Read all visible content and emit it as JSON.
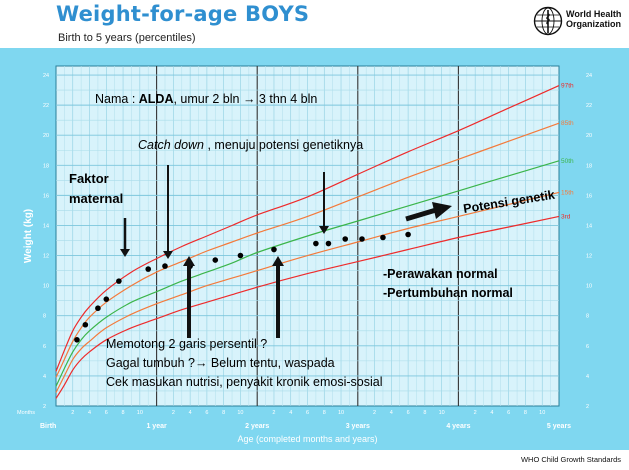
{
  "header": {
    "title": "Weight-for-age BOYS",
    "subtitle": "Birth to 5 years (percentiles)",
    "org_name_line1": "World Health",
    "org_name_line2": "Organization"
  },
  "footer": {
    "text": "WHO Child Growth Standards"
  },
  "colors": {
    "band": "#7fd7f0",
    "plot_bg": "#d8f3fb",
    "red_curve": "#ee2b2b",
    "orange_curve": "#f47a3b",
    "green_curve": "#3bb54a",
    "arrow": "#111111"
  },
  "chart_data": {
    "type": "line",
    "title": "Weight-for-age BOYS",
    "subtitle": "Birth to 5 years (percentiles)",
    "xlabel": "Age (completed months and years)",
    "ylabel": "Weight (kg)",
    "xlim": [
      0,
      60
    ],
    "ylim": [
      2,
      24.6
    ],
    "grid": true,
    "y_ticks": [
      2,
      4,
      6,
      8,
      10,
      12,
      14,
      16,
      18,
      20,
      22,
      24
    ],
    "x_month_ticks": [
      {
        "m": 2,
        "label": "2"
      },
      {
        "m": 4,
        "label": "4"
      },
      {
        "m": 6,
        "label": "6"
      },
      {
        "m": 8,
        "label": "8"
      },
      {
        "m": 10,
        "label": "10"
      },
      {
        "m": 14,
        "label": "2"
      },
      {
        "m": 16,
        "label": "4"
      },
      {
        "m": 18,
        "label": "6"
      },
      {
        "m": 20,
        "label": "8"
      },
      {
        "m": 22,
        "label": "10"
      },
      {
        "m": 26,
        "label": "2"
      },
      {
        "m": 28,
        "label": "4"
      },
      {
        "m": 30,
        "label": "6"
      },
      {
        "m": 32,
        "label": "8"
      },
      {
        "m": 34,
        "label": "10"
      },
      {
        "m": 38,
        "label": "2"
      },
      {
        "m": 40,
        "label": "4"
      },
      {
        "m": 42,
        "label": "6"
      },
      {
        "m": 44,
        "label": "8"
      },
      {
        "m": 46,
        "label": "10"
      },
      {
        "m": 50,
        "label": "2"
      },
      {
        "m": 52,
        "label": "4"
      },
      {
        "m": 54,
        "label": "6"
      },
      {
        "m": 56,
        "label": "8"
      },
      {
        "m": 58,
        "label": "10"
      }
    ],
    "x_year_ticks": [
      {
        "m": 0,
        "label": "Birth"
      },
      {
        "m": 12,
        "label": "1 year"
      },
      {
        "m": 24,
        "label": "2 years"
      },
      {
        "m": 36,
        "label": "3 years"
      },
      {
        "m": 48,
        "label": "4 years"
      },
      {
        "m": 60,
        "label": "5 years"
      }
    ],
    "months_label": "Months",
    "x": [
      0,
      1,
      2,
      3,
      4,
      6,
      9,
      12,
      15,
      18,
      21,
      24,
      30,
      36,
      42,
      48,
      54,
      60
    ],
    "series": [
      {
        "name": "97th",
        "color": "red",
        "values": [
          4.3,
          5.7,
          7.0,
          7.9,
          8.6,
          9.7,
          10.9,
          11.8,
          12.6,
          13.3,
          14.0,
          14.7,
          15.9,
          17.4,
          18.9,
          20.3,
          21.8,
          23.3
        ]
      },
      {
        "name": "85th",
        "color": "orange",
        "values": [
          3.9,
          5.1,
          6.3,
          7.2,
          7.9,
          8.9,
          10.0,
          10.9,
          11.6,
          12.3,
          12.9,
          13.5,
          14.6,
          15.9,
          17.2,
          18.4,
          19.6,
          20.8
        ]
      },
      {
        "name": "50th",
        "color": "green",
        "values": [
          3.3,
          4.5,
          5.6,
          6.4,
          7.0,
          7.9,
          8.9,
          9.6,
          10.3,
          10.9,
          11.5,
          12.2,
          13.3,
          14.3,
          15.3,
          16.3,
          17.3,
          18.3
        ]
      },
      {
        "name": "15th",
        "color": "orange",
        "values": [
          2.9,
          4.0,
          5.1,
          5.8,
          6.3,
          7.2,
          8.1,
          8.8,
          9.4,
          10.0,
          10.5,
          11.0,
          12.0,
          12.9,
          13.8,
          14.6,
          15.4,
          16.2
        ]
      },
      {
        "name": "3rd",
        "color": "red",
        "values": [
          2.5,
          3.4,
          4.4,
          5.1,
          5.6,
          6.4,
          7.2,
          7.8,
          8.4,
          8.9,
          9.4,
          9.9,
          10.8,
          11.6,
          12.4,
          13.2,
          13.9,
          14.6
        ]
      }
    ],
    "points": {
      "name": "ALDA",
      "x": [
        2.5,
        3.5,
        5.0,
        6.0,
        7.5,
        11.0,
        13.0,
        16.0,
        19.0,
        22.0,
        26.0,
        31.0,
        32.5,
        34.5,
        36.5,
        39.0,
        42.0
      ],
      "y": [
        6.4,
        7.4,
        8.5,
        9.1,
        10.3,
        11.1,
        11.3,
        11.3,
        11.7,
        12.0,
        12.4,
        12.8,
        12.8,
        13.1,
        13.1,
        13.2,
        13.4
      ]
    },
    "annotations": {
      "nama_prefix": "Nama : ",
      "nama_name": "ALDA",
      "nama_suffix": ", umur 2 bln → 3 thn 4 bln",
      "catch_down_italic": "Catch down",
      "catch_down_rest": " , menuju potensi genetiknya",
      "faktor_line1": "Faktor",
      "faktor_line2": "maternal",
      "potensi": "Potensi genetik",
      "perawakan": "-Perawakan normal",
      "pertumbuhan": "-Pertumbuhan normal",
      "memotong": "Memotong 2 garis persentil ?",
      "gagal": "Gagal tumbuh ?→ Belum tentu, waspada",
      "cek": "Cek masukan nutrisi, penyakit kronik  emosi-sosial"
    }
  }
}
